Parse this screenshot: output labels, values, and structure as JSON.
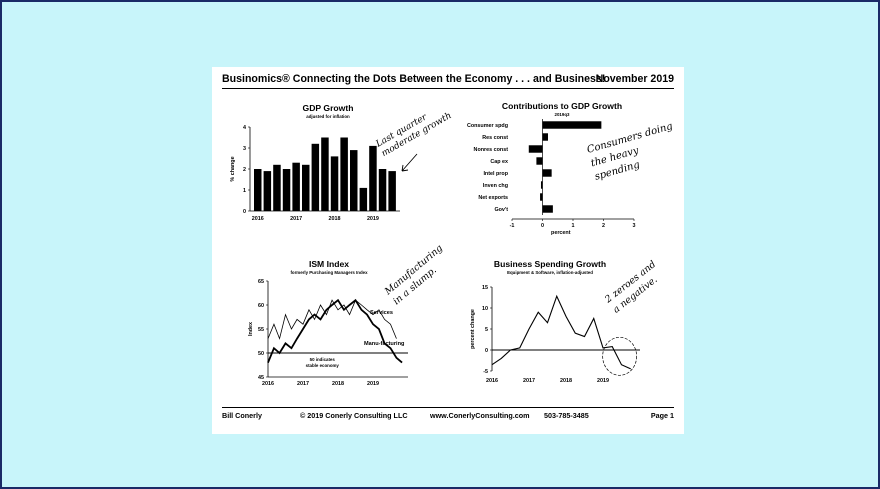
{
  "header": {
    "title": "Businomics® Connecting the Dots Between the Economy . . . and Business!",
    "date": "November 2019"
  },
  "footer": {
    "author": "Bill Conerly",
    "copyright": "© 2019 Conerly Consulting LLC",
    "website": "www.ConerlyConsulting.com",
    "phone": "503-785-3485",
    "page": "Page 1"
  },
  "colors": {
    "background": "#c8f5fa",
    "border": "#1a2a66",
    "ink": "#000000"
  },
  "chart_data": [
    {
      "id": "gdp",
      "type": "bar",
      "title": "GDP Growth",
      "subtitle": "adjusted for inflation",
      "ylabel": "% change",
      "ylim": [
        0,
        4
      ],
      "yticks": [
        0,
        1,
        2,
        3,
        4
      ],
      "year_labels": [
        "2016",
        "2017",
        "2018",
        "2019"
      ],
      "values": [
        2.0,
        1.9,
        2.2,
        2.0,
        2.3,
        2.2,
        3.2,
        3.5,
        2.6,
        3.5,
        2.9,
        1.1,
        3.1,
        2.0,
        1.9
      ],
      "annotation": [
        "Last quarter",
        "moderate growth"
      ]
    },
    {
      "id": "contrib",
      "type": "bar",
      "orientation": "horizontal",
      "title": "Contributions to GDP Growth",
      "subtitle": "2019q3",
      "xlabel": "percent",
      "xlim": [
        -1,
        3
      ],
      "xticks": [
        -1,
        0,
        1,
        2,
        3
      ],
      "categories": [
        "Consumer spdg",
        "Res const",
        "Nonres const",
        "Cap ex",
        "Intel prop",
        "Inven chg",
        "Net exports",
        "Gov't"
      ],
      "values": [
        1.93,
        0.18,
        -0.45,
        -0.2,
        0.3,
        -0.05,
        -0.08,
        0.34
      ],
      "annotation": [
        "Consumers doing",
        "the heavy",
        "spending"
      ]
    },
    {
      "id": "ism",
      "type": "line",
      "title": "ISM Index",
      "subtitle": "formerly Purchasing Managers Index",
      "ylabel": "Index",
      "ylim": [
        45,
        65
      ],
      "yticks": [
        45,
        50,
        55,
        60,
        65
      ],
      "year_labels": [
        "2016",
        "2017",
        "2018",
        "2019"
      ],
      "xlim": [
        2016,
        2020
      ],
      "reference_line": {
        "value": 50,
        "label": [
          "50 indicates",
          "stable economy"
        ]
      },
      "series": [
        {
          "name": "Services",
          "x": [
            2016.0,
            2016.17,
            2016.33,
            2016.5,
            2016.67,
            2016.83,
            2017.0,
            2017.17,
            2017.33,
            2017.5,
            2017.67,
            2017.83,
            2018.0,
            2018.17,
            2018.33,
            2018.5,
            2018.67,
            2018.83,
            2019.0,
            2019.17,
            2019.33,
            2019.5,
            2019.67
          ],
          "values": [
            53,
            56,
            53,
            58,
            55,
            57,
            56,
            59,
            57,
            60,
            58,
            61,
            59,
            60,
            58,
            61,
            60,
            59,
            58,
            59,
            57,
            56,
            53
          ]
        },
        {
          "name": "Manu-facturing",
          "x": [
            2016.0,
            2016.17,
            2016.33,
            2016.5,
            2016.67,
            2016.83,
            2017.0,
            2017.17,
            2017.33,
            2017.5,
            2017.67,
            2017.83,
            2018.0,
            2018.17,
            2018.33,
            2018.5,
            2018.67,
            2018.83,
            2019.0,
            2019.17,
            2019.33,
            2019.5,
            2019.67,
            2019.83
          ],
          "values": [
            48,
            51,
            50,
            52,
            51,
            53,
            55,
            57,
            58,
            57,
            59,
            60,
            61,
            59,
            60,
            61,
            59,
            58,
            56,
            55,
            52,
            51,
            49,
            48
          ]
        }
      ],
      "annotation": [
        "Manufacturing",
        "in a slump."
      ]
    },
    {
      "id": "bizspend",
      "type": "line",
      "title": "Business Spending Growth",
      "subtitle": "Equipment & Software, inflation-adjusted",
      "ylabel": "percent change",
      "ylim": [
        -5,
        15
      ],
      "yticks": [
        -5,
        0,
        5,
        10,
        15
      ],
      "year_labels": [
        "2016",
        "2017",
        "2018",
        "2019"
      ],
      "xlim": [
        2016,
        2020
      ],
      "series": [
        {
          "name": "",
          "x": [
            2016.0,
            2016.25,
            2016.5,
            2016.75,
            2017.0,
            2017.25,
            2017.5,
            2017.75,
            2018.0,
            2018.25,
            2018.5,
            2018.75,
            2019.0,
            2019.25,
            2019.5,
            2019.75
          ],
          "values": [
            -3.5,
            -2,
            0,
            0.5,
            5,
            9,
            6.5,
            12.8,
            8,
            4,
            3.2,
            7.5,
            0.5,
            0.8,
            -3.5,
            -4.5
          ]
        }
      ],
      "annotation": [
        "2 zeroes and",
        "a negative."
      ]
    }
  ]
}
